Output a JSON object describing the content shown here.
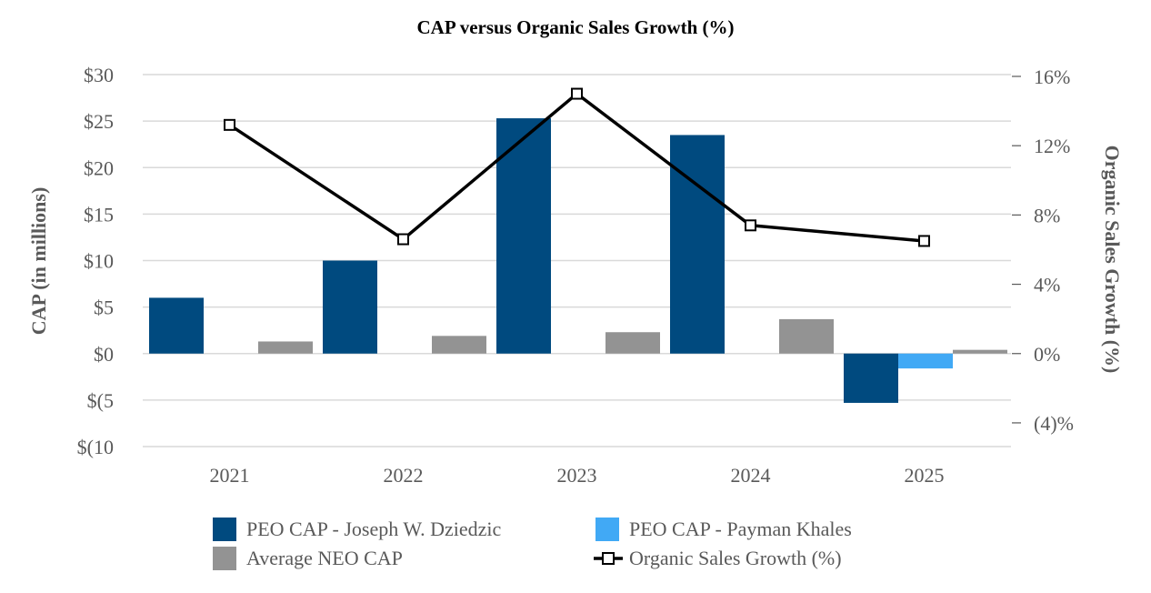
{
  "chart_data": {
    "type": "bar",
    "title": "CAP versus Organic Sales Growth (%)",
    "categories": [
      "2021",
      "2022",
      "2023",
      "2024",
      "2025"
    ],
    "ylabel": "CAP (in millions)",
    "y2label": "Organic Sales Growth (%)",
    "ylim": [
      -10,
      30
    ],
    "y2lim": [
      -6,
      16
    ],
    "yticks": [
      30,
      25,
      20,
      15,
      10,
      5,
      0,
      -5,
      -10
    ],
    "ytick_labels": [
      "$30",
      "$25",
      "$20",
      "$15",
      "$10",
      "$5",
      "$0",
      "$(5",
      "$(10"
    ],
    "y2ticks": [
      16,
      12,
      8,
      4,
      0,
      -4
    ],
    "y2tick_labels": [
      "16%",
      "12%",
      "8%",
      "4%",
      "0%",
      "(4)%"
    ],
    "grid": true,
    "legend_position": "bottom",
    "series": [
      {
        "name": "PEO CAP - Joseph W. Dziedzic",
        "kind": "bar",
        "axis": "left",
        "color": "#004a7f",
        "values": [
          6.0,
          10.0,
          25.3,
          23.5,
          -5.3
        ]
      },
      {
        "name": "PEO CAP - Payman Khales",
        "kind": "bar",
        "axis": "left",
        "color": "#41a9f5",
        "values": [
          null,
          null,
          null,
          null,
          -1.6
        ]
      },
      {
        "name": "Average NEO CAP",
        "kind": "bar",
        "axis": "left",
        "color": "#939393",
        "values": [
          1.3,
          1.9,
          2.3,
          3.7,
          0.4
        ]
      },
      {
        "name": "Organic Sales Growth (%)",
        "kind": "line",
        "axis": "right",
        "color": "#000000",
        "values": [
          13.2,
          6.6,
          15.0,
          7.4,
          6.5
        ]
      }
    ]
  }
}
